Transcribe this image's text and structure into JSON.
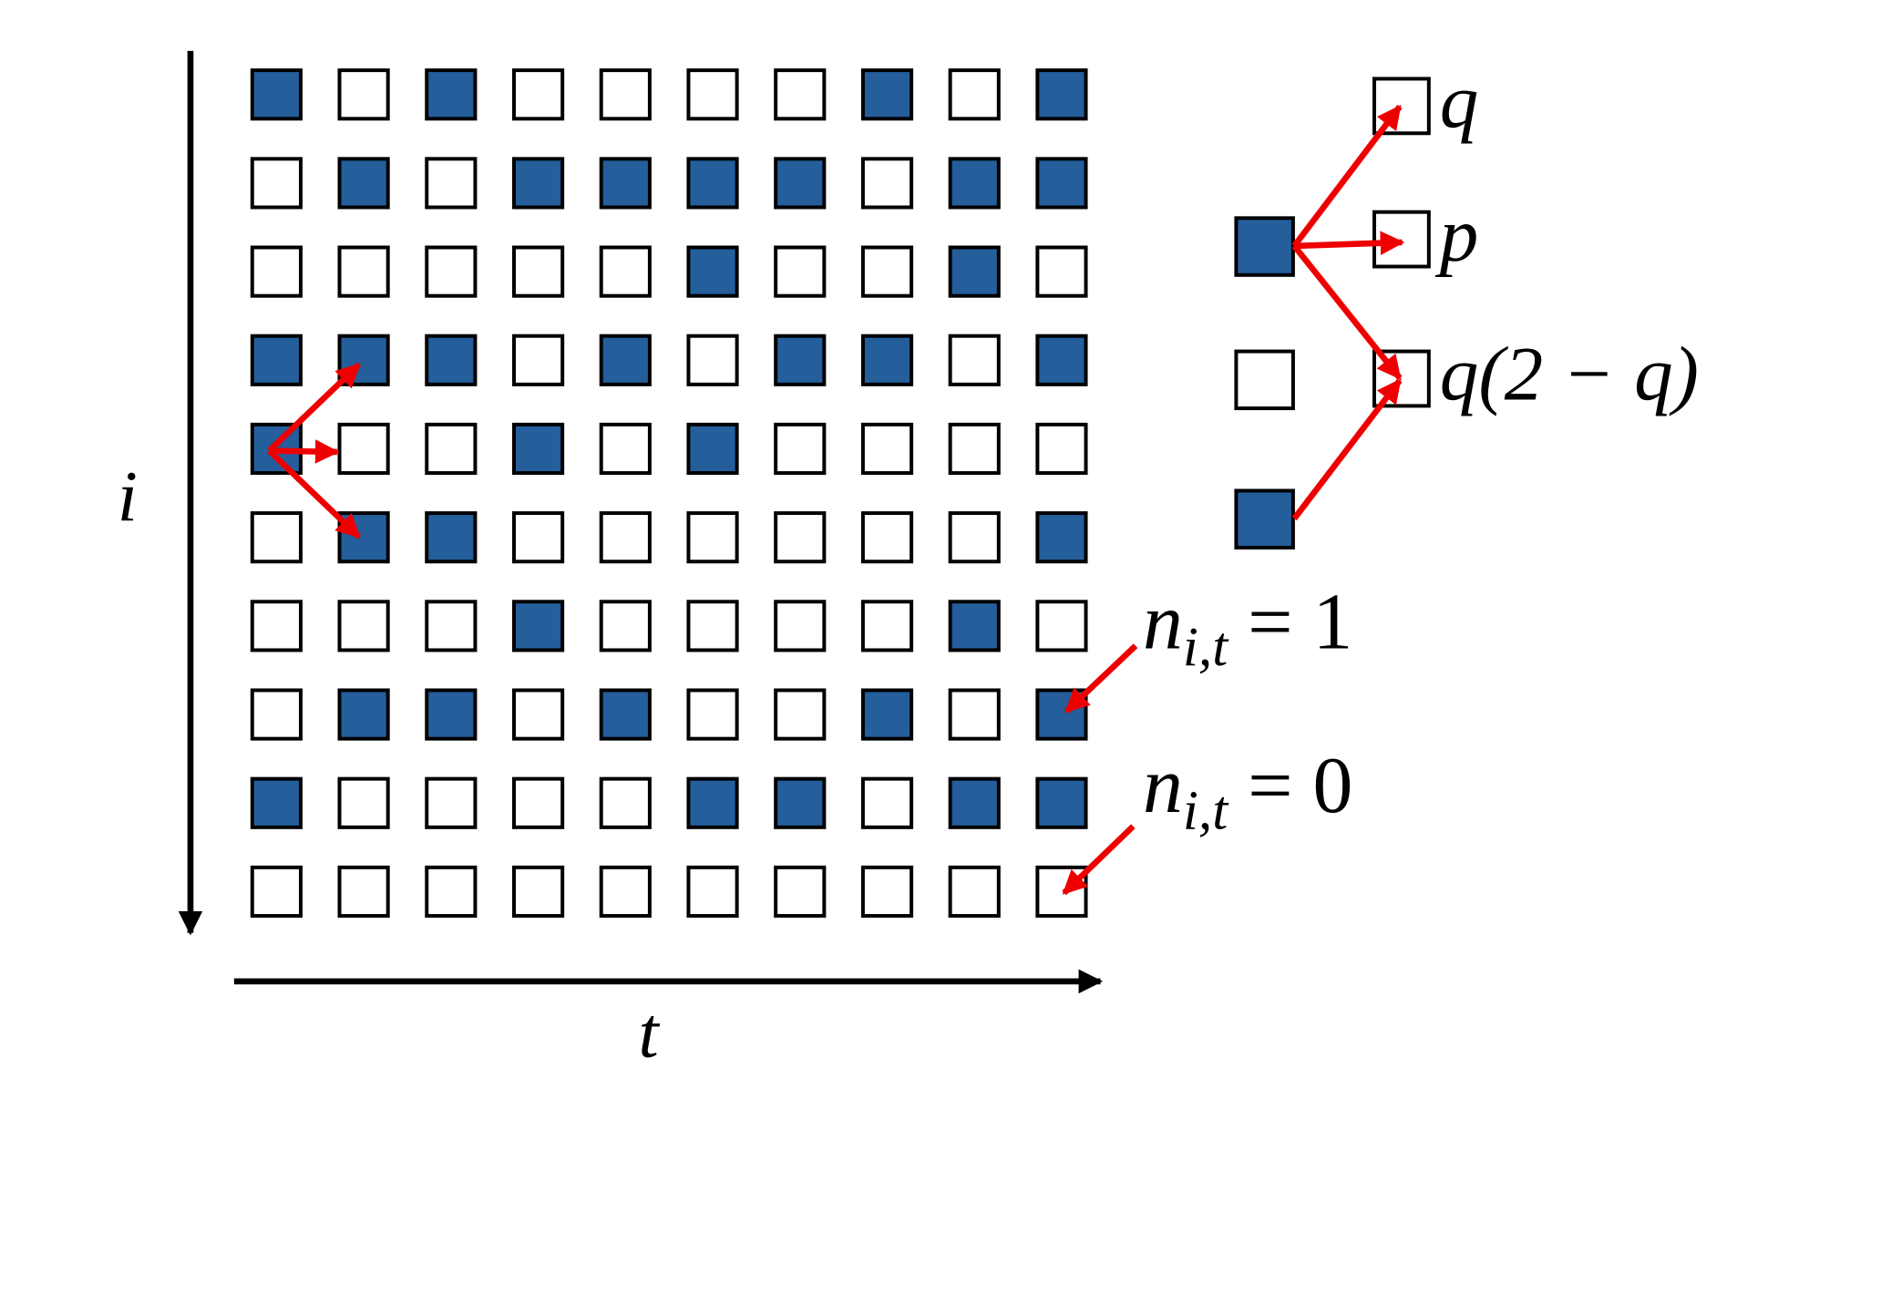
{
  "grid": [
    [
      1,
      0,
      1,
      0,
      0,
      0,
      0,
      1,
      0,
      1
    ],
    [
      0,
      1,
      0,
      1,
      1,
      1,
      1,
      0,
      1,
      1
    ],
    [
      0,
      0,
      0,
      0,
      0,
      1,
      0,
      0,
      1,
      0
    ],
    [
      1,
      1,
      1,
      0,
      1,
      0,
      1,
      1,
      0,
      1
    ],
    [
      1,
      0,
      0,
      1,
      0,
      1,
      0,
      0,
      0,
      0
    ],
    [
      0,
      1,
      1,
      0,
      0,
      0,
      0,
      0,
      0,
      1
    ],
    [
      0,
      0,
      0,
      1,
      0,
      0,
      0,
      0,
      1,
      0
    ],
    [
      0,
      1,
      1,
      0,
      1,
      0,
      0,
      1,
      0,
      1
    ],
    [
      1,
      0,
      0,
      0,
      0,
      1,
      1,
      0,
      1,
      1
    ],
    [
      0,
      0,
      0,
      0,
      0,
      0,
      0,
      0,
      0,
      0
    ]
  ],
  "axes": {
    "vertical": "i",
    "horizontal": "t"
  },
  "transitions": {
    "top": "q",
    "middle": "p",
    "bottom": "q(2 − q)"
  },
  "annotations": [
    {
      "base": "n",
      "subscript": "i,t",
      "rest": " = 1"
    },
    {
      "base": "n",
      "subscript": "i,t",
      "rest": " = 0"
    }
  ]
}
